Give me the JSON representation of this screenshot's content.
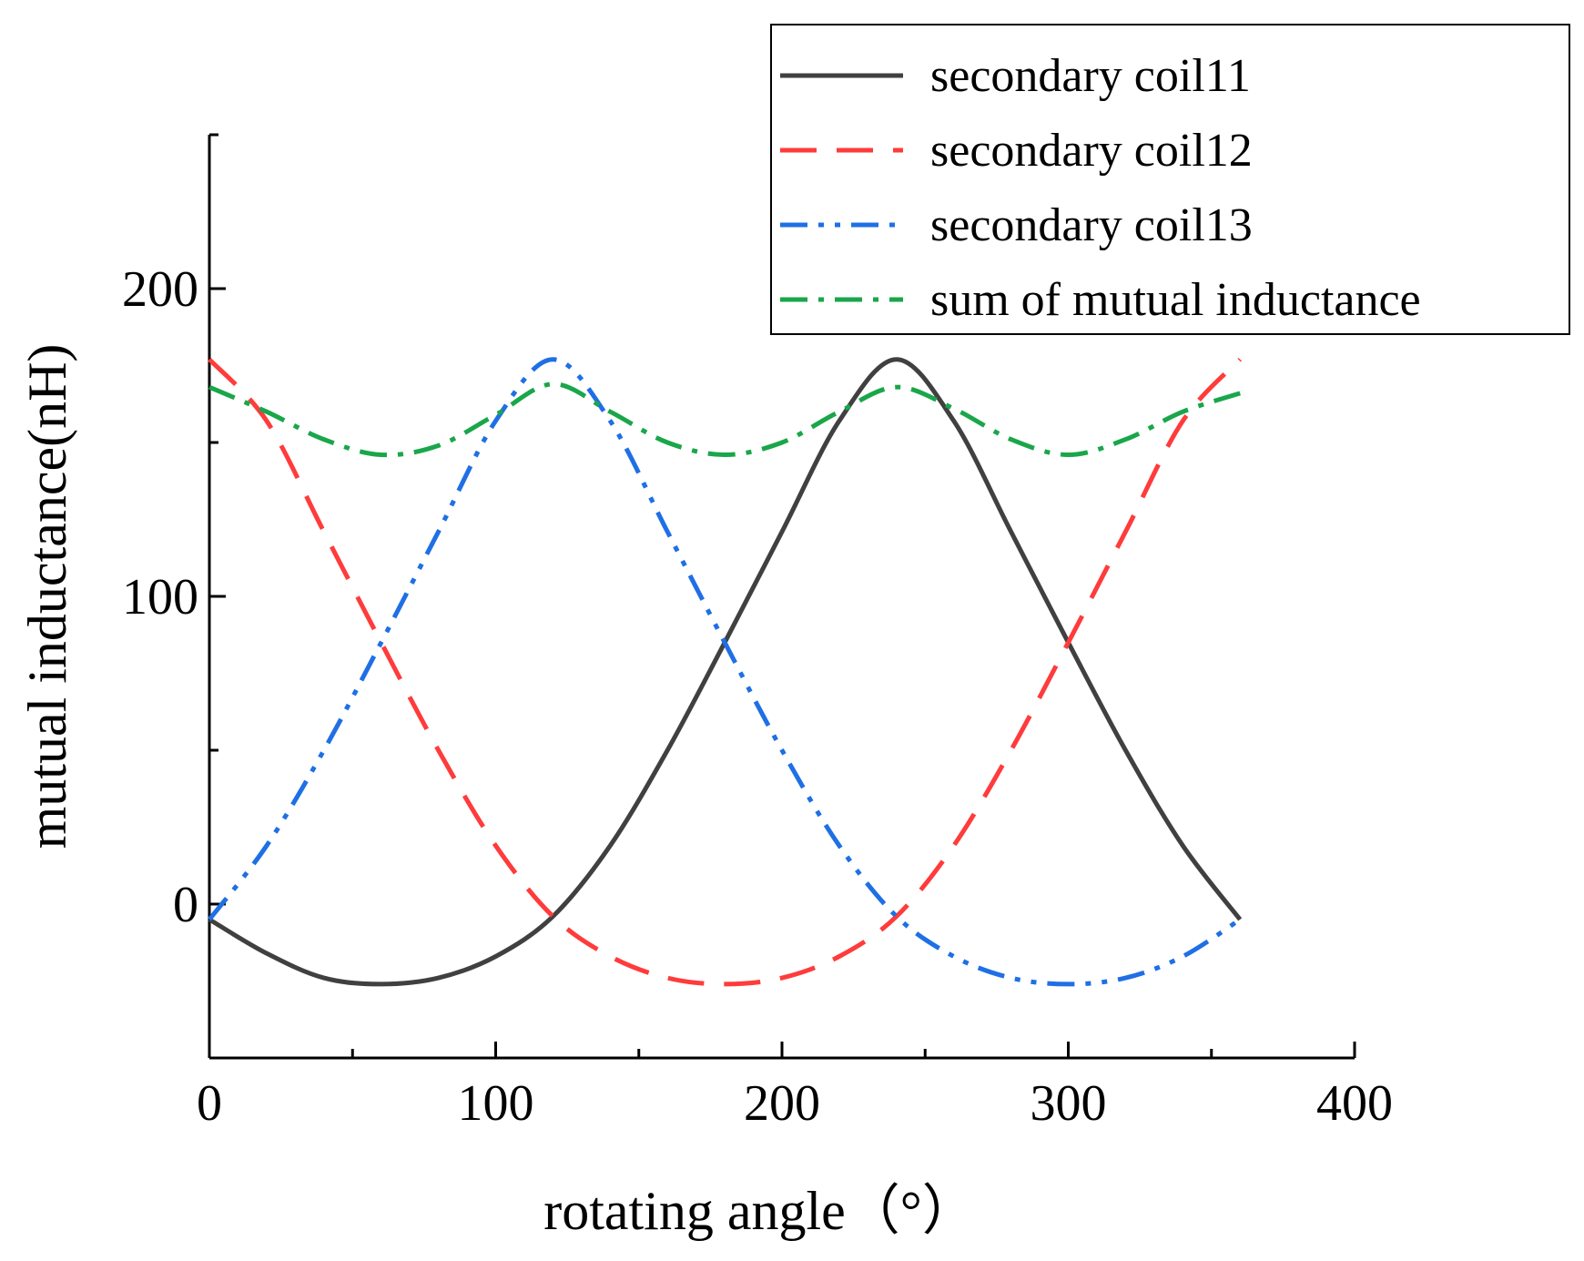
{
  "chart_data": {
    "type": "line",
    "title": "",
    "xlabel": "rotating angle（°）",
    "ylabel": "mutual inductance(nH)",
    "xlim": [
      0,
      400
    ],
    "ylim": [
      -50,
      250
    ],
    "xticks": [
      0,
      100,
      200,
      300,
      400
    ],
    "yticks": [
      0,
      100,
      200
    ],
    "xtick_labels": [
      "0",
      "100",
      "200",
      "300",
      "400"
    ],
    "ytick_labels": [
      "0",
      "100",
      "200"
    ],
    "grid": false,
    "legend_position": "top-right",
    "series": [
      {
        "name": "secondary coil11",
        "color": "#404040",
        "dash": "solid",
        "x": [
          0,
          20,
          40,
          60,
          80,
          100,
          120,
          140,
          160,
          180,
          200,
          220,
          240,
          260,
          280,
          300,
          320,
          340,
          360
        ],
        "y": [
          -5,
          -16,
          -24,
          -26,
          -24,
          -17,
          -4,
          19,
          50,
          85,
          121,
          157,
          177,
          157,
          121,
          85,
          50,
          19,
          -5
        ]
      },
      {
        "name": "secondary coil12",
        "color": "#ff3b3b",
        "dash": "dashed",
        "x": [
          0,
          20,
          40,
          60,
          80,
          100,
          120,
          140,
          160,
          180,
          200,
          220,
          240,
          260,
          280,
          300,
          320,
          340,
          360
        ],
        "y": [
          177,
          157,
          121,
          85,
          50,
          19,
          -4,
          -17,
          -24,
          -26,
          -24,
          -17,
          -4,
          19,
          50,
          85,
          121,
          157,
          177
        ]
      },
      {
        "name": "secondary coil13",
        "color": "#1f6fe5",
        "dash": "dash-dot-dot",
        "x": [
          0,
          20,
          40,
          60,
          80,
          100,
          120,
          140,
          160,
          180,
          200,
          220,
          240,
          260,
          280,
          300,
          320,
          340,
          360
        ],
        "y": [
          -5,
          19,
          50,
          85,
          121,
          157,
          177,
          157,
          121,
          85,
          50,
          19,
          -4,
          -17,
          -24,
          -26,
          -24,
          -17,
          -5
        ]
      },
      {
        "name": "sum of mutual inductance",
        "color": "#1aa64a",
        "dash": "dash-dot",
        "x": [
          0,
          20,
          40,
          60,
          80,
          100,
          120,
          140,
          160,
          180,
          200,
          220,
          240,
          260,
          280,
          300,
          320,
          340,
          360
        ],
        "y": [
          168,
          160,
          151,
          146,
          149,
          159,
          169,
          160,
          150,
          146,
          150,
          160,
          168,
          161,
          151,
          146,
          151,
          160,
          166
        ]
      }
    ]
  }
}
